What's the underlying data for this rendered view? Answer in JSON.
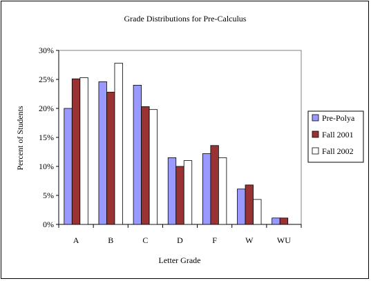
{
  "chart_data": {
    "type": "bar",
    "title": "Grade Distributions for Pre-Calculus",
    "xlabel": "Letter Grade",
    "ylabel": "Percent of Students",
    "ylim": [
      0,
      30
    ],
    "y_ticks": [
      "0%",
      "5%",
      "10%",
      "15%",
      "20%",
      "25%",
      "30%"
    ],
    "y_tick_values": [
      0,
      5,
      10,
      15,
      20,
      25,
      30
    ],
    "categories": [
      "A",
      "B",
      "C",
      "D",
      "F",
      "W",
      "WU"
    ],
    "series": [
      {
        "name": "Pre-Polya",
        "color": "#9999ff",
        "values": [
          20.0,
          24.6,
          24.0,
          11.5,
          12.2,
          6.1,
          1.1
        ]
      },
      {
        "name": "Fall 2001",
        "color": "#993333",
        "values": [
          25.1,
          22.8,
          20.3,
          10.0,
          13.6,
          6.8,
          1.1
        ]
      },
      {
        "name": "Fall 2002",
        "color": "#ffffff",
        "values": [
          25.3,
          27.8,
          19.8,
          11.0,
          11.5,
          4.3,
          0.0
        ]
      }
    ],
    "legend_position": "right",
    "grid": false
  }
}
